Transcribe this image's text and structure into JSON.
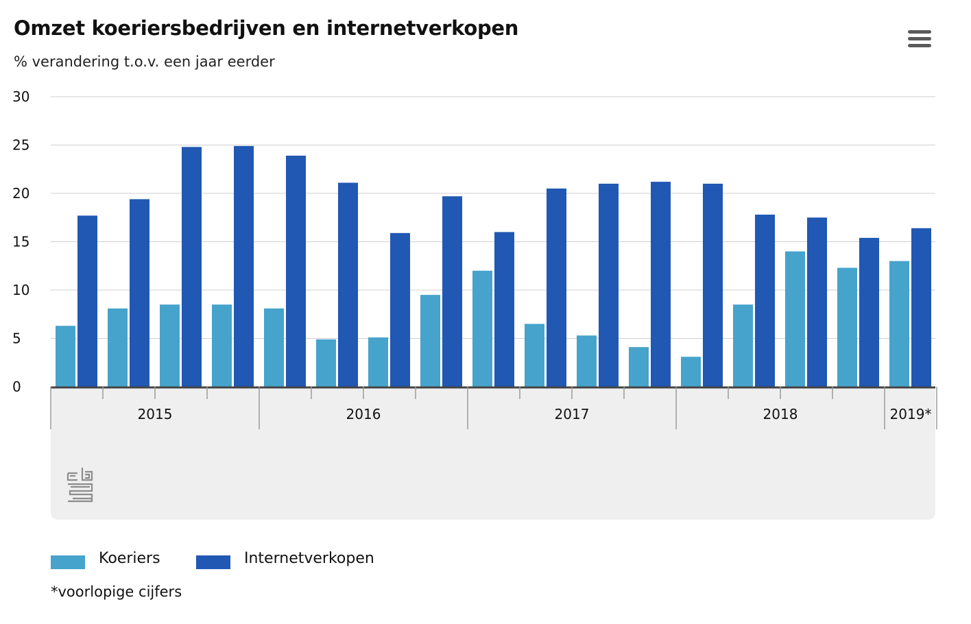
{
  "title": "Omzet koeriersbedrijven en internetverkopen",
  "subtitle": "% verandering t.o.v. een jaar eerder",
  "menu_icon": "hamburger-menu-icon",
  "logo_icon": "cbs-logo-icon",
  "footnote": "*voorlopige cijfers",
  "colors": {
    "koeriers": "#46a3cc",
    "internetverkopen": "#2058b3",
    "grid": "#cfcfcf",
    "axis_band": "#efefef"
  },
  "chart_data": {
    "type": "bar",
    "title": "Omzet koeriersbedrijven en internetverkopen",
    "subtitle": "% verandering t.o.v. een jaar eerder",
    "ylim": [
      0,
      30
    ],
    "yticks": [
      "0",
      "5",
      "10",
      "15",
      "20",
      "25",
      "30"
    ],
    "grid": true,
    "legend_position": "bottom-left",
    "year_groups": [
      {
        "label": "2015",
        "quarters": 4
      },
      {
        "label": "2016",
        "quarters": 4
      },
      {
        "label": "2017",
        "quarters": 4
      },
      {
        "label": "2018",
        "quarters": 4
      },
      {
        "label": "2019*",
        "quarters": 1
      }
    ],
    "categories": [
      "2015 Q1",
      "2015 Q2",
      "2015 Q3",
      "2015 Q4",
      "2016 Q1",
      "2016 Q2",
      "2016 Q3",
      "2016 Q4",
      "2017 Q1",
      "2017 Q2",
      "2017 Q3",
      "2017 Q4",
      "2018 Q1",
      "2018 Q2",
      "2018 Q3",
      "2018 Q4",
      "2019 Q1"
    ],
    "series": [
      {
        "name": "Koeriers",
        "color": "#46a3cc",
        "values": [
          6.3,
          8.1,
          8.5,
          8.5,
          8.1,
          4.9,
          5.1,
          9.5,
          12.0,
          6.5,
          5.3,
          4.1,
          3.1,
          8.5,
          14.0,
          12.3,
          13.0
        ]
      },
      {
        "name": "Internetverkopen",
        "color": "#2058b3",
        "values": [
          17.7,
          19.4,
          24.8,
          24.9,
          23.9,
          21.1,
          15.9,
          19.7,
          16.0,
          20.5,
          21.0,
          21.2,
          21.0,
          17.8,
          17.5,
          15.4,
          16.4
        ]
      }
    ]
  }
}
